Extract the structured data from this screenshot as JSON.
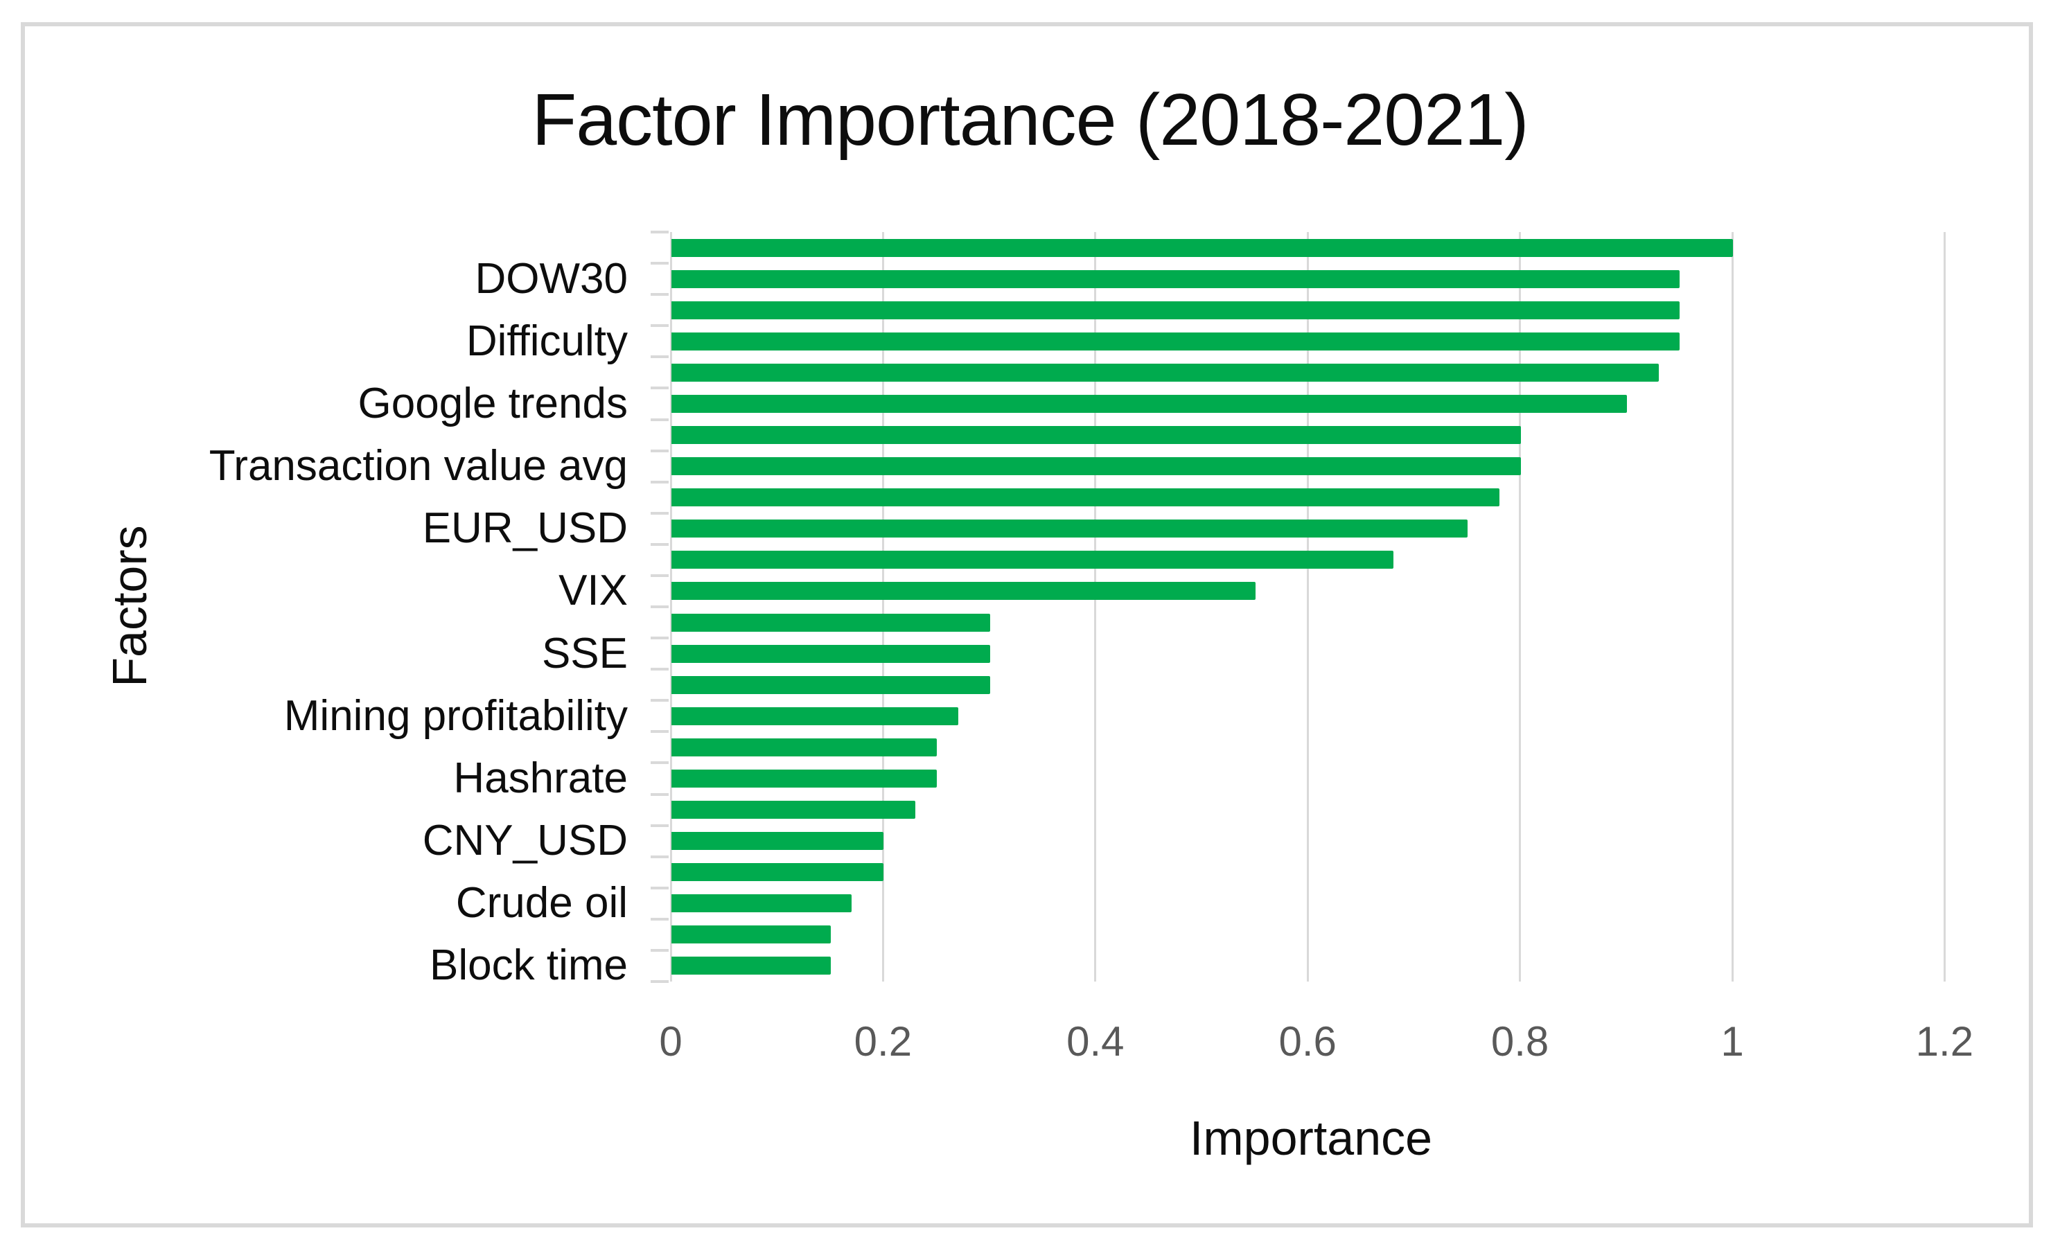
{
  "page": {
    "background_color": "#FFFFFF",
    "frame_color": "#D9D9D9"
  },
  "chart_data": {
    "type": "bar",
    "orientation": "horizontal",
    "title": "Factor Importance (2018-2021)",
    "xlabel": "Importance",
    "ylabel": "Factors",
    "xlim": [
      0,
      1.2
    ],
    "xtick_values": [
      0,
      0.2,
      0.4,
      0.6,
      0.8,
      1,
      1.2
    ],
    "xtick_labels": [
      "0",
      "0.2",
      "0.4",
      "0.6",
      "0.8",
      "1",
      "1.2"
    ],
    "grid": true,
    "legend": "none",
    "bar_color": "#00AB4E",
    "axis_color": "#D9D9D9",
    "grid_color": "#D9D9D9",
    "tick_label_color": "#595959",
    "text_color": "#0d0d0d",
    "bars": [
      {
        "label": "",
        "value": 1.0
      },
      {
        "label": "DOW30",
        "value": 0.95
      },
      {
        "label": "",
        "value": 0.95
      },
      {
        "label": "Difficulty",
        "value": 0.95
      },
      {
        "label": "",
        "value": 0.93
      },
      {
        "label": "Google trends",
        "value": 0.9
      },
      {
        "label": "",
        "value": 0.8
      },
      {
        "label": "Transaction value avg",
        "value": 0.8
      },
      {
        "label": "",
        "value": 0.78
      },
      {
        "label": "EUR_USD",
        "value": 0.75
      },
      {
        "label": "",
        "value": 0.68
      },
      {
        "label": "VIX",
        "value": 0.55
      },
      {
        "label": "",
        "value": 0.3
      },
      {
        "label": "SSE",
        "value": 0.3
      },
      {
        "label": "",
        "value": 0.3
      },
      {
        "label": "Mining profitability",
        "value": 0.27
      },
      {
        "label": "",
        "value": 0.25
      },
      {
        "label": "Hashrate",
        "value": 0.25
      },
      {
        "label": "",
        "value": 0.23
      },
      {
        "label": "CNY_USD",
        "value": 0.2
      },
      {
        "label": "",
        "value": 0.2
      },
      {
        "label": "Crude oil",
        "value": 0.17
      },
      {
        "label": "",
        "value": 0.15
      },
      {
        "label": "Block time",
        "value": 0.15
      }
    ]
  }
}
